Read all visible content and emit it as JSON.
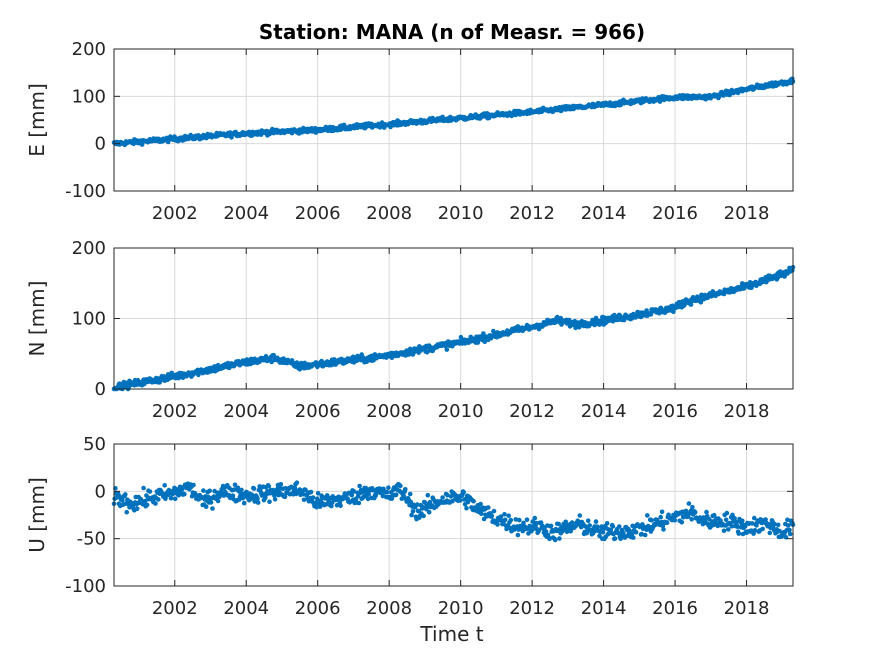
{
  "chart_data": {
    "type": "scatter",
    "title": "Station: MANA (n of Measr. = 966)",
    "n_points": 966,
    "marker_color": "#0072BD",
    "grid": true,
    "x_label": "Time t",
    "x_range": [
      2000.3,
      2019.3
    ],
    "x_ticks": [
      2002,
      2004,
      2006,
      2008,
      2010,
      2012,
      2014,
      2016,
      2018
    ],
    "x_tick_labels": [
      "2002",
      "2004",
      "2006",
      "2008",
      "2010",
      "2012",
      "2014",
      "2016",
      "2018"
    ],
    "panels": [
      {
        "id": "E",
        "ylabel": "E [mm]",
        "ylim": [
          -100,
          200
        ],
        "yticks": [
          -100,
          0,
          100,
          200
        ],
        "ytick_labels": [
          "-100",
          "0",
          "100",
          "200"
        ],
        "trend_knots": [
          [
            2000.3,
            0
          ],
          [
            2002,
            10
          ],
          [
            2004,
            22
          ],
          [
            2006,
            29
          ],
          [
            2008,
            41
          ],
          [
            2010,
            54
          ],
          [
            2012,
            67
          ],
          [
            2014,
            82
          ],
          [
            2016,
            98
          ],
          [
            2017,
            99
          ],
          [
            2018,
            115
          ],
          [
            2019.3,
            133
          ]
        ],
        "noise_mm": 2.5
      },
      {
        "id": "N",
        "ylabel": "N [mm]",
        "ylim": [
          0,
          200
        ],
        "yticks": [
          0,
          100,
          200
        ],
        "ytick_labels": [
          "0",
          "100",
          "200"
        ],
        "trend_knots": [
          [
            2000.3,
            2
          ],
          [
            2002,
            18
          ],
          [
            2004,
            38
          ],
          [
            2004.8,
            44
          ],
          [
            2005.5,
            32
          ],
          [
            2006.5,
            38
          ],
          [
            2007.5,
            44
          ],
          [
            2008,
            48
          ],
          [
            2010,
            66
          ],
          [
            2012,
            88
          ],
          [
            2012.7,
            97
          ],
          [
            2013.2,
            92
          ],
          [
            2014,
            97
          ],
          [
            2016,
            115
          ],
          [
            2016.3,
            124
          ],
          [
            2018,
            145
          ],
          [
            2019.3,
            168
          ]
        ],
        "noise_mm": 2.5
      },
      {
        "id": "U",
        "ylabel": "U [mm]",
        "ylim": [
          -100,
          50
        ],
        "yticks": [
          -100,
          -50,
          0,
          50
        ],
        "ytick_labels": [
          "-100",
          "-50",
          "0",
          "50"
        ],
        "trend_knots": [
          [
            2000.3,
            -5
          ],
          [
            2000.8,
            -13
          ],
          [
            2001.5,
            -5
          ],
          [
            2002,
            -2
          ],
          [
            2002.4,
            5
          ],
          [
            2002.8,
            -12
          ],
          [
            2003.3,
            0
          ],
          [
            2004,
            -4
          ],
          [
            2005,
            0
          ],
          [
            2005.5,
            1
          ],
          [
            2006,
            -12
          ],
          [
            2007,
            -6
          ],
          [
            2007.5,
            2
          ],
          [
            2008,
            -5
          ],
          [
            2008.3,
            2
          ],
          [
            2008.8,
            -22
          ],
          [
            2009.5,
            -8
          ],
          [
            2010.1,
            -6
          ],
          [
            2010.5,
            -20
          ],
          [
            2011,
            -28
          ],
          [
            2011.5,
            -36
          ],
          [
            2012.3,
            -38
          ],
          [
            2012.6,
            -44
          ],
          [
            2013.3,
            -35
          ],
          [
            2014,
            -44
          ],
          [
            2015,
            -40
          ],
          [
            2015.5,
            -34
          ],
          [
            2016.4,
            -22
          ],
          [
            2016.8,
            -31
          ],
          [
            2017.5,
            -32
          ],
          [
            2018,
            -38
          ],
          [
            2018.6,
            -34
          ],
          [
            2019,
            -44
          ],
          [
            2019.3,
            -36
          ]
        ],
        "noise_mm": 4.5
      }
    ]
  }
}
